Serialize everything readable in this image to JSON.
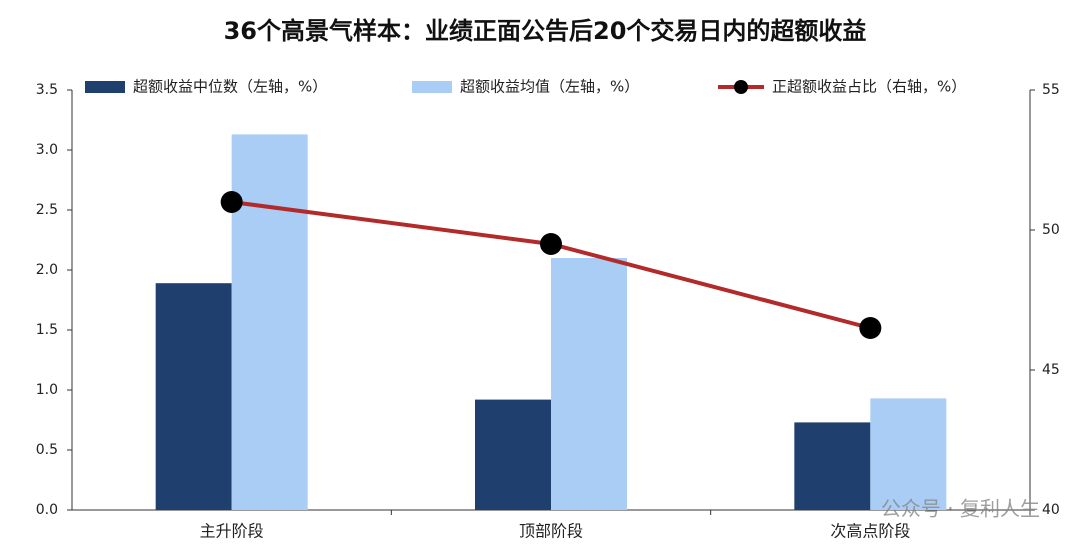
{
  "chart_data": {
    "type": "bar_line",
    "title": "36个高景气样本：业绩正面公告后20个交易日内的超额收益",
    "categories": [
      "主升阶段",
      "顶部阶段",
      "次高点阶段"
    ],
    "series": [
      {
        "name": "超额收益中位数（左轴，%）",
        "type": "bar",
        "color": "#1f3f6e",
        "values": [
          1.89,
          0.92,
          0.73
        ]
      },
      {
        "name": "超额收益均值（左轴，%）",
        "type": "bar",
        "color": "#a9cdf5",
        "values": [
          3.13,
          2.1,
          0.93
        ]
      },
      {
        "name": "正超额收益占比（右轴，%）",
        "type": "line",
        "axis": "y2",
        "color": "#b22a2a",
        "values": [
          51.0,
          49.5,
          46.5
        ]
      }
    ],
    "ylim": [
      0,
      3.5
    ],
    "yticks": [
      {
        "value": 0,
        "label": "0.0"
      },
      0.5,
      {
        "value": 1,
        "label": "1.0"
      },
      1.5,
      {
        "value": 2,
        "label": "2.0"
      },
      2.5,
      {
        "value": 3,
        "label": "3.0"
      },
      3.5
    ],
    "y2lim": [
      40,
      55
    ],
    "y2ticks": [
      40,
      45,
      50,
      55
    ],
    "watermark": "公众号 · 复利人生"
  }
}
